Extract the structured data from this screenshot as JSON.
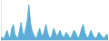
{
  "chart_data": {
    "type": "area",
    "x": [
      0,
      1,
      2,
      3,
      4,
      5,
      6,
      7,
      8,
      9,
      10,
      11,
      12,
      13,
      14,
      15,
      16,
      17,
      18,
      19,
      20,
      21,
      22,
      23,
      24,
      25,
      26,
      27,
      28,
      29,
      30,
      31,
      32,
      33,
      34,
      35,
      36,
      37,
      38,
      39,
      40,
      41,
      42,
      43,
      44,
      45,
      46,
      47,
      48,
      49,
      50,
      51,
      52,
      53,
      54,
      55,
      56,
      57,
      58,
      59,
      60,
      61,
      62,
      63,
      64,
      65,
      66,
      67,
      68,
      69
    ],
    "values": [
      0.1,
      0.15,
      0.05,
      0.3,
      0.5,
      0.2,
      0.1,
      0.6,
      0.8,
      0.3,
      0.15,
      0.1,
      0.5,
      0.9,
      0.4,
      0.2,
      0.6,
      1.0,
      1.8,
      0.9,
      0.5,
      0.3,
      0.15,
      0.1,
      0.4,
      0.6,
      0.3,
      0.2,
      0.5,
      0.8,
      0.4,
      0.15,
      0.1,
      0.3,
      0.6,
      0.4,
      0.2,
      0.3,
      0.5,
      0.3,
      0.15,
      0.2,
      0.4,
      0.3,
      0.15,
      0.1,
      0.3,
      0.5,
      0.4,
      0.2,
      0.1,
      0.3,
      0.6,
      0.8,
      0.4,
      0.2,
      0.1,
      0.3,
      0.5,
      0.3,
      0.15,
      0.1,
      0.2,
      0.4,
      0.3,
      0.2,
      0.1,
      0.15,
      0.3,
      0.2
    ],
    "color": "#5bacd6",
    "xlim": [
      0,
      69
    ],
    "ylim": [
      0.0,
      2.0
    ],
    "tick_labels": false,
    "grid": false
  }
}
